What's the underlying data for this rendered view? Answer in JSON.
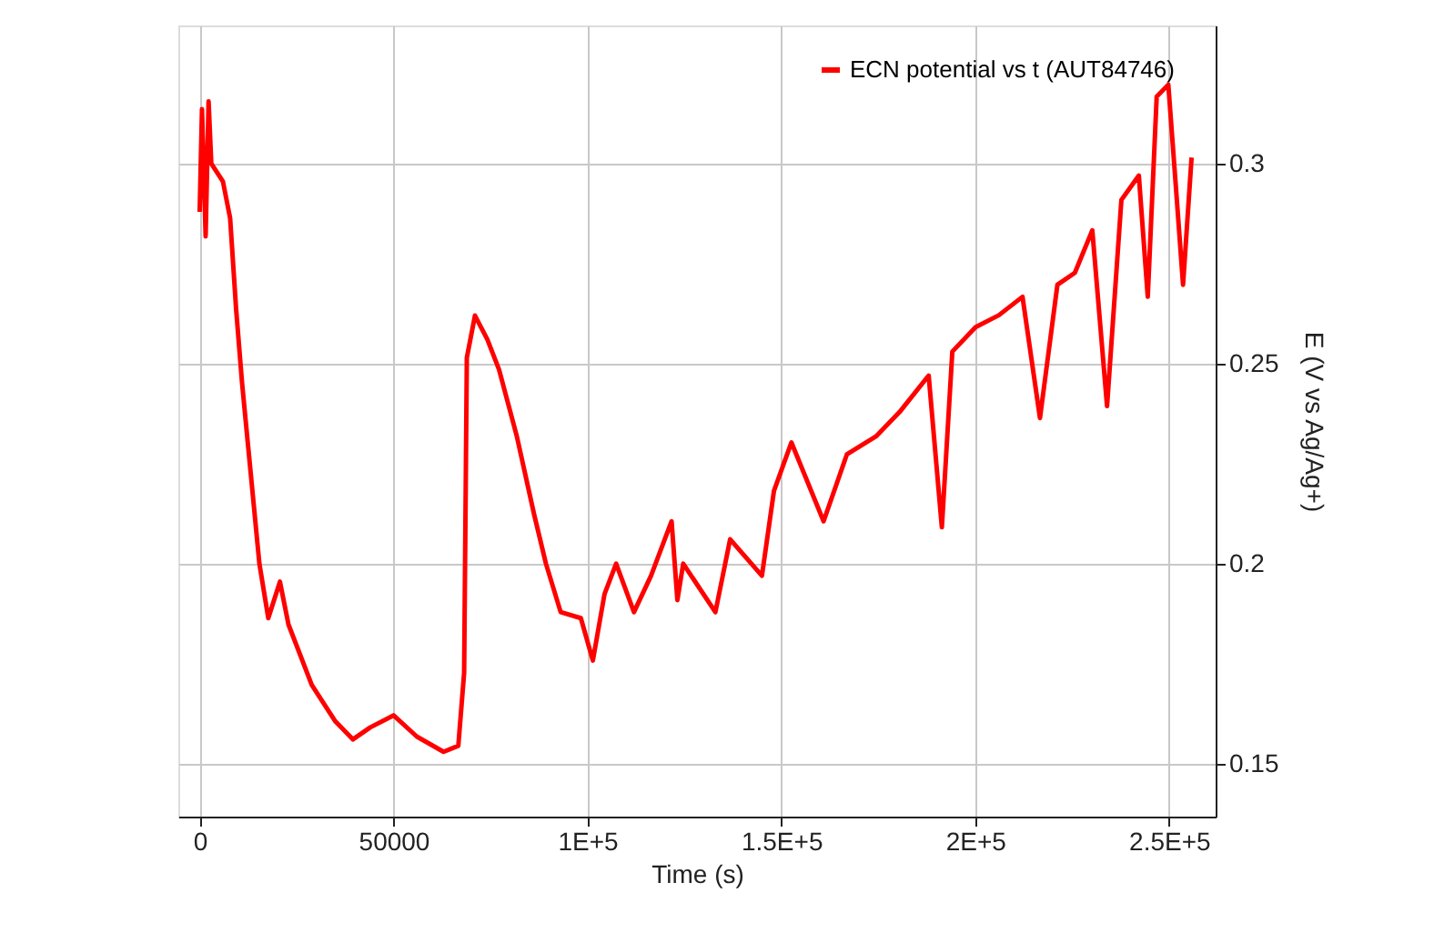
{
  "chart_data": {
    "type": "line",
    "xlabel": "Time (s)",
    "ylabel": "E (V vs Ag/Ag+)",
    "x": [
      0,
      600,
      1540,
      2300,
      3000,
      6000,
      7850,
      9400,
      10900,
      12400,
      13900,
      15400,
      17700,
      20700,
      22900,
      28900,
      35000,
      39500,
      44000,
      50000,
      56000,
      62900,
      66700,
      68200,
      68900,
      71000,
      74200,
      77200,
      81800,
      86300,
      89300,
      93100,
      98300,
      101400,
      104400,
      107400,
      112000,
      116400,
      121700,
      123200,
      124700,
      133000,
      136800,
      145000,
      148100,
      152600,
      160900,
      166900,
      174400,
      180500,
      188000,
      191400,
      194100,
      200100,
      206100,
      212200,
      216700,
      221200,
      225700,
      230200,
      234000,
      237700,
      242200,
      244500,
      246800,
      249800,
      252000,
      253600,
      255800
    ],
    "series": [
      {
        "name": "ECN potential  vs t (AUT84746)",
        "color": "#ff0000",
        "values": [
          0.2879,
          0.3136,
          0.2818,
          0.3155,
          0.3,
          0.2955,
          0.2864,
          0.2636,
          0.2455,
          0.2303,
          0.2152,
          0.2,
          0.1864,
          0.1955,
          0.1848,
          0.1697,
          0.1606,
          0.1561,
          0.1591,
          0.1621,
          0.1568,
          0.153,
          0.1545,
          0.1727,
          0.2515,
          0.262,
          0.256,
          0.2485,
          0.2318,
          0.2121,
          0.2,
          0.1879,
          0.1864,
          0.1758,
          0.1924,
          0.2,
          0.1879,
          0.197,
          0.2106,
          0.1909,
          0.2,
          0.1879,
          0.2061,
          0.197,
          0.2182,
          0.2303,
          0.2106,
          0.2273,
          0.2318,
          0.2379,
          0.247,
          0.2091,
          0.253,
          0.2591,
          0.2621,
          0.2667,
          0.2364,
          0.2697,
          0.2727,
          0.2833,
          0.2394,
          0.2909,
          0.297,
          0.2667,
          0.3167,
          0.3197,
          0.2909,
          0.2697,
          0.3015
        ]
      }
    ],
    "xlim": [
      -5500,
      262000
    ],
    "xticks": [
      0,
      50000,
      {
        "value": 100000,
        "label": "1E+5"
      },
      {
        "value": 150000,
        "label": "1.5E+5"
      },
      {
        "value": 200000,
        "label": "2E+5"
      },
      {
        "value": 250000,
        "label": "2.5E+5"
      }
    ],
    "ylim": [
      0.1368,
      0.3345
    ],
    "yticks": [
      0.15,
      0.2,
      0.25,
      0.3
    ],
    "grid": true,
    "legend": "top right",
    "marker": "none",
    "line_style": "solid"
  }
}
